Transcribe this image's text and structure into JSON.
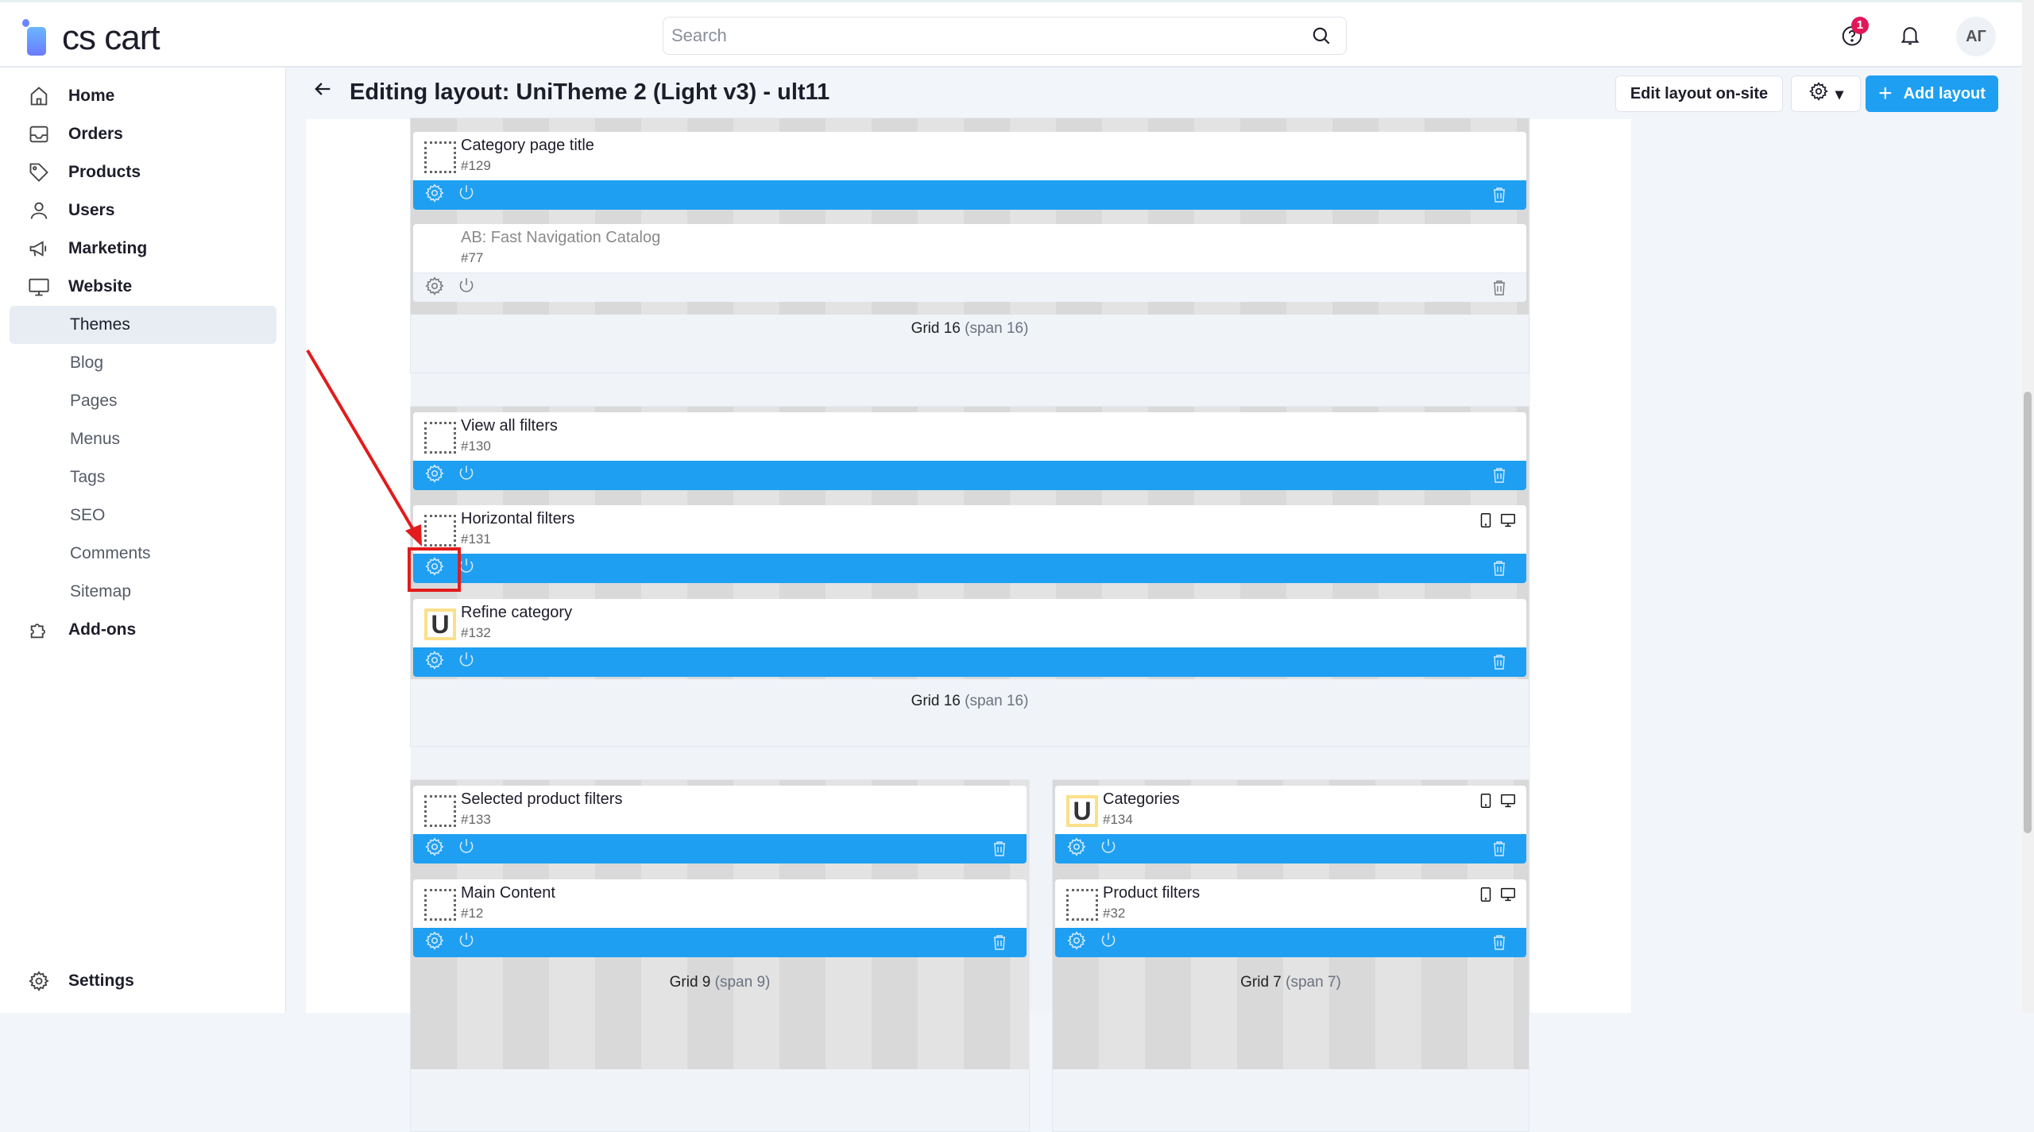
{
  "header": {
    "logo": "cs cart",
    "search_placeholder": "Search",
    "help_badge": "1",
    "avatar": "АГ"
  },
  "sidebar": {
    "items": [
      {
        "label": "Home",
        "icon": "home-icon",
        "type": "main"
      },
      {
        "label": "Orders",
        "icon": "inbox-icon",
        "type": "main"
      },
      {
        "label": "Products",
        "icon": "tag-icon",
        "type": "main"
      },
      {
        "label": "Users",
        "icon": "user-icon",
        "type": "main"
      },
      {
        "label": "Marketing",
        "icon": "megaphone-icon",
        "type": "main"
      },
      {
        "label": "Website",
        "icon": "monitor-icon",
        "type": "main"
      },
      {
        "label": "Themes",
        "type": "sub",
        "active": true
      },
      {
        "label": "Blog",
        "type": "sub"
      },
      {
        "label": "Pages",
        "type": "sub"
      },
      {
        "label": "Menus",
        "type": "sub"
      },
      {
        "label": "Tags",
        "type": "sub"
      },
      {
        "label": "SEO",
        "type": "sub"
      },
      {
        "label": "Comments",
        "type": "sub"
      },
      {
        "label": "Sitemap",
        "type": "sub"
      },
      {
        "label": "Add-ons",
        "icon": "puzzle-icon",
        "type": "main"
      }
    ],
    "settings": "Settings"
  },
  "page": {
    "title": "Editing layout: UniTheme 2 (Light v3) - ult11",
    "edit_onsite": "Edit layout on-site",
    "add_layout": "Add layout"
  },
  "grids": [
    {
      "label": "Grid 16",
      "span": "(span 16)",
      "blocks": [
        {
          "title": "Category page title",
          "id": "#129",
          "icon": "dotted"
        },
        {
          "title": "AB: Fast Navigation Catalog",
          "id": "#77",
          "icon": "none",
          "disabled": true
        }
      ]
    },
    {
      "label": "Grid 16",
      "span": "(span 16)",
      "blocks": [
        {
          "title": "View all filters",
          "id": "#130",
          "icon": "dotted"
        },
        {
          "title": "Horizontal filters",
          "id": "#131",
          "icon": "dotted",
          "devices": true
        },
        {
          "title": "Refine category",
          "id": "#132",
          "icon": "U"
        }
      ]
    },
    {
      "label": "Grid 9",
      "span": "(span 9)",
      "blocks": [
        {
          "title": "Selected product filters",
          "id": "#133",
          "icon": "dotted"
        },
        {
          "title": "Main Content",
          "id": "#12",
          "icon": "dotted"
        }
      ]
    },
    {
      "label": "Grid 7",
      "span": "(span 7)",
      "blocks": [
        {
          "title": "Categories",
          "id": "#134",
          "icon": "U",
          "devices": true
        },
        {
          "title": "Product filters",
          "id": "#32",
          "icon": "dotted",
          "devices": true
        }
      ]
    }
  ],
  "colors": {
    "accent": "#1e9ff2",
    "badge": "#e0185a",
    "annotation": "#e21c1c"
  }
}
